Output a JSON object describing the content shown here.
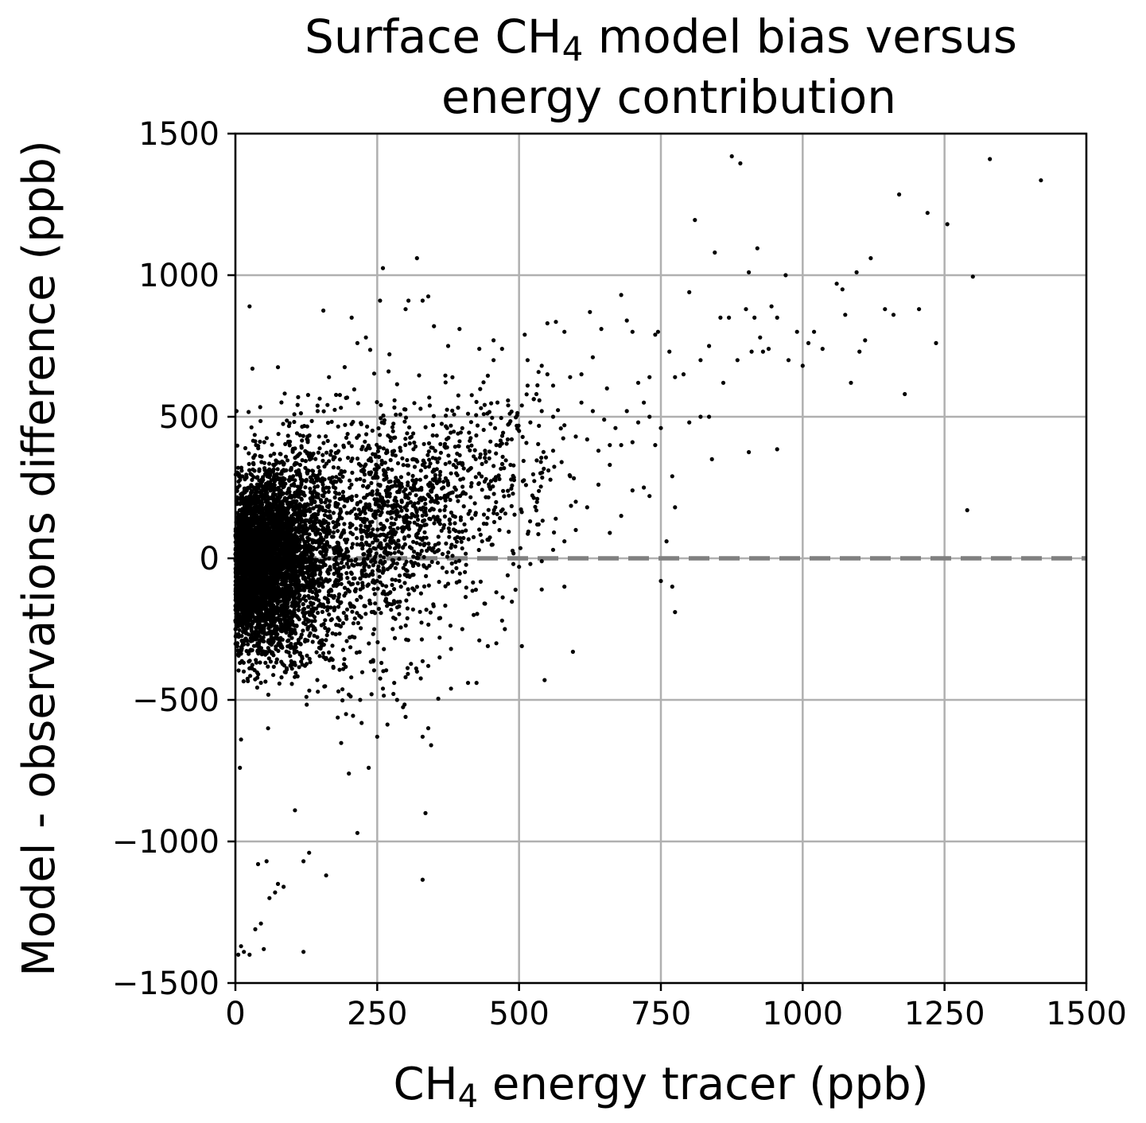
{
  "chart_data": {
    "type": "scatter",
    "title": {
      "line1_pre": "Surface CH",
      "line1_sub": "4",
      "line1_post": " model bias versus",
      "line2": "energy contribution"
    },
    "xlabel": {
      "pre": "CH",
      "sub": "4",
      "post": " energy tracer (ppb)"
    },
    "ylabel": "Model - observations difference (ppb)",
    "xlim": [
      0,
      1500
    ],
    "ylim": [
      -1500,
      1500
    ],
    "xticks": [
      0,
      250,
      500,
      750,
      1000,
      1250,
      1500
    ],
    "yticks": [
      -1500,
      -1000,
      -500,
      0,
      500,
      1000,
      1500
    ],
    "xtick_labels": [
      "0",
      "250",
      "500",
      "750",
      "1000",
      "1250",
      "1500"
    ],
    "ytick_labels": [
      "−1500",
      "−1000",
      "−500",
      "0",
      "500",
      "1000",
      "1500"
    ],
    "grid": true,
    "reference_line": {
      "y": 0,
      "style": "dashed",
      "color": "#808080"
    },
    "marker_color": "#000000",
    "dense_cluster": {
      "description_points": 5200,
      "center_x": 80,
      "center_y": 0
    },
    "points": [
      [
        2,
        520
      ],
      [
        25,
        890
      ],
      [
        30,
        670
      ],
      [
        75,
        675
      ],
      [
        145,
        520
      ],
      [
        155,
        875
      ],
      [
        165,
        640
      ],
      [
        205,
        850
      ],
      [
        215,
        760
      ],
      [
        230,
        780
      ],
      [
        260,
        1025
      ],
      [
        320,
        1060
      ],
      [
        255,
        910
      ],
      [
        300,
        880
      ],
      [
        305,
        910
      ],
      [
        330,
        910
      ],
      [
        340,
        925
      ],
      [
        350,
        820
      ],
      [
        395,
        810
      ],
      [
        375,
        750
      ],
      [
        270,
        660
      ],
      [
        285,
        615
      ],
      [
        455,
        770
      ],
      [
        430,
        740
      ],
      [
        470,
        740
      ],
      [
        455,
        700
      ],
      [
        510,
        790
      ],
      [
        515,
        700
      ],
      [
        515,
        610
      ],
      [
        505,
        540
      ],
      [
        550,
        830
      ],
      [
        565,
        835
      ],
      [
        580,
        800
      ],
      [
        540,
        680
      ],
      [
        550,
        650
      ],
      [
        560,
        610
      ],
      [
        590,
        640
      ],
      [
        610,
        650
      ],
      [
        625,
        870
      ],
      [
        630,
        710
      ],
      [
        645,
        810
      ],
      [
        655,
        600
      ],
      [
        680,
        930
      ],
      [
        690,
        840
      ],
      [
        700,
        800
      ],
      [
        710,
        620
      ],
      [
        720,
        550
      ],
      [
        730,
        640
      ],
      [
        740,
        790
      ],
      [
        745,
        800
      ],
      [
        765,
        730
      ],
      [
        775,
        640
      ],
      [
        790,
        650
      ],
      [
        800,
        940
      ],
      [
        810,
        1195
      ],
      [
        820,
        700
      ],
      [
        835,
        750
      ],
      [
        845,
        1080
      ],
      [
        855,
        850
      ],
      [
        860,
        620
      ],
      [
        870,
        850
      ],
      [
        875,
        1420
      ],
      [
        885,
        700
      ],
      [
        890,
        1395
      ],
      [
        900,
        880
      ],
      [
        905,
        1010
      ],
      [
        910,
        730
      ],
      [
        915,
        850
      ],
      [
        920,
        1095
      ],
      [
        925,
        780
      ],
      [
        930,
        730
      ],
      [
        940,
        740
      ],
      [
        945,
        890
      ],
      [
        955,
        850
      ],
      [
        970,
        1000
      ],
      [
        975,
        700
      ],
      [
        990,
        800
      ],
      [
        1000,
        680
      ],
      [
        1010,
        760
      ],
      [
        1020,
        800
      ],
      [
        1035,
        740
      ],
      [
        1060,
        970
      ],
      [
        1070,
        950
      ],
      [
        1075,
        860
      ],
      [
        1085,
        620
      ],
      [
        1095,
        1010
      ],
      [
        1100,
        730
      ],
      [
        1110,
        770
      ],
      [
        1120,
        1060
      ],
      [
        1145,
        880
      ],
      [
        1160,
        860
      ],
      [
        1170,
        1285
      ],
      [
        1180,
        580
      ],
      [
        1205,
        880
      ],
      [
        1220,
        1220
      ],
      [
        1235,
        760
      ],
      [
        1255,
        1180
      ],
      [
        1290,
        170
      ],
      [
        1300,
        995
      ],
      [
        1330,
        1410
      ],
      [
        1420,
        1335
      ],
      [
        905,
        375
      ],
      [
        955,
        385
      ],
      [
        835,
        500
      ],
      [
        840,
        350
      ],
      [
        820,
        500
      ],
      [
        800,
        480
      ],
      [
        775,
        180
      ],
      [
        770,
        290
      ],
      [
        760,
        60
      ],
      [
        750,
        -80
      ],
      [
        770,
        -100
      ],
      [
        775,
        -190
      ],
      [
        580,
        -100
      ],
      [
        540,
        -110
      ],
      [
        595,
        -330
      ],
      [
        545,
        -430
      ],
      [
        505,
        -310
      ],
      [
        490,
        -20
      ],
      [
        470,
        -220
      ],
      [
        475,
        -250
      ],
      [
        460,
        -300
      ],
      [
        445,
        -310
      ],
      [
        430,
        -290
      ],
      [
        425,
        -440
      ],
      [
        410,
        -440
      ],
      [
        380,
        -460
      ],
      [
        360,
        -280
      ],
      [
        340,
        -600
      ],
      [
        345,
        -660
      ],
      [
        335,
        -900
      ],
      [
        330,
        -1135
      ],
      [
        300,
        -560
      ],
      [
        285,
        -500
      ],
      [
        330,
        -630
      ],
      [
        250,
        -630
      ],
      [
        235,
        -740
      ],
      [
        215,
        -970
      ],
      [
        200,
        -760
      ],
      [
        195,
        -550
      ],
      [
        160,
        -1120
      ],
      [
        130,
        -1040
      ],
      [
        120,
        -1070
      ],
      [
        120,
        -1390
      ],
      [
        105,
        -890
      ],
      [
        85,
        -1160
      ],
      [
        75,
        -1150
      ],
      [
        70,
        -1180
      ],
      [
        60,
        -1200
      ],
      [
        50,
        -1380
      ],
      [
        45,
        -1290
      ],
      [
        35,
        -1310
      ],
      [
        25,
        -1400
      ],
      [
        15,
        -1390
      ],
      [
        10,
        -1370
      ],
      [
        5,
        -1400
      ],
      [
        8,
        -740
      ],
      [
        10,
        -640
      ],
      [
        55,
        -1070
      ],
      [
        40,
        -1080
      ],
      [
        560,
        380
      ],
      [
        575,
        340
      ],
      [
        590,
        290
      ],
      [
        600,
        200
      ],
      [
        620,
        180
      ],
      [
        640,
        260
      ],
      [
        660,
        90
      ],
      [
        680,
        150
      ],
      [
        700,
        240
      ],
      [
        720,
        250
      ],
      [
        730,
        220
      ],
      [
        740,
        400
      ],
      [
        700,
        410
      ],
      [
        660,
        400
      ],
      [
        640,
        380
      ],
      [
        620,
        420
      ],
      [
        600,
        430
      ],
      [
        580,
        470
      ],
      [
        560,
        500
      ],
      [
        540,
        520
      ],
      [
        520,
        480
      ],
      [
        500,
        450
      ],
      [
        480,
        420
      ],
      [
        460,
        400
      ],
      [
        440,
        380
      ],
      [
        420,
        360
      ],
      [
        400,
        330
      ],
      [
        380,
        300
      ],
      [
        360,
        280
      ],
      [
        340,
        260
      ],
      [
        610,
        550
      ],
      [
        630,
        520
      ],
      [
        650,
        490
      ],
      [
        670,
        460
      ],
      [
        690,
        520
      ],
      [
        710,
        480
      ],
      [
        730,
        500
      ],
      [
        750,
        460
      ],
      [
        680,
        400
      ],
      [
        660,
        330
      ],
      [
        600,
        100
      ],
      [
        580,
        60
      ],
      [
        560,
        30
      ],
      [
        540,
        -10
      ],
      [
        520,
        -20
      ],
      [
        500,
        -30
      ],
      [
        480,
        -60
      ],
      [
        460,
        -120
      ],
      [
        440,
        -160
      ],
      [
        420,
        -200
      ],
      [
        400,
        -250
      ],
      [
        380,
        -320
      ],
      [
        360,
        -350
      ],
      [
        340,
        -380
      ],
      [
        320,
        -400
      ],
      [
        300,
        -420
      ],
      [
        280,
        -440
      ],
      [
        260,
        -460
      ],
      [
        240,
        -480
      ],
      [
        220,
        -500
      ]
    ]
  }
}
